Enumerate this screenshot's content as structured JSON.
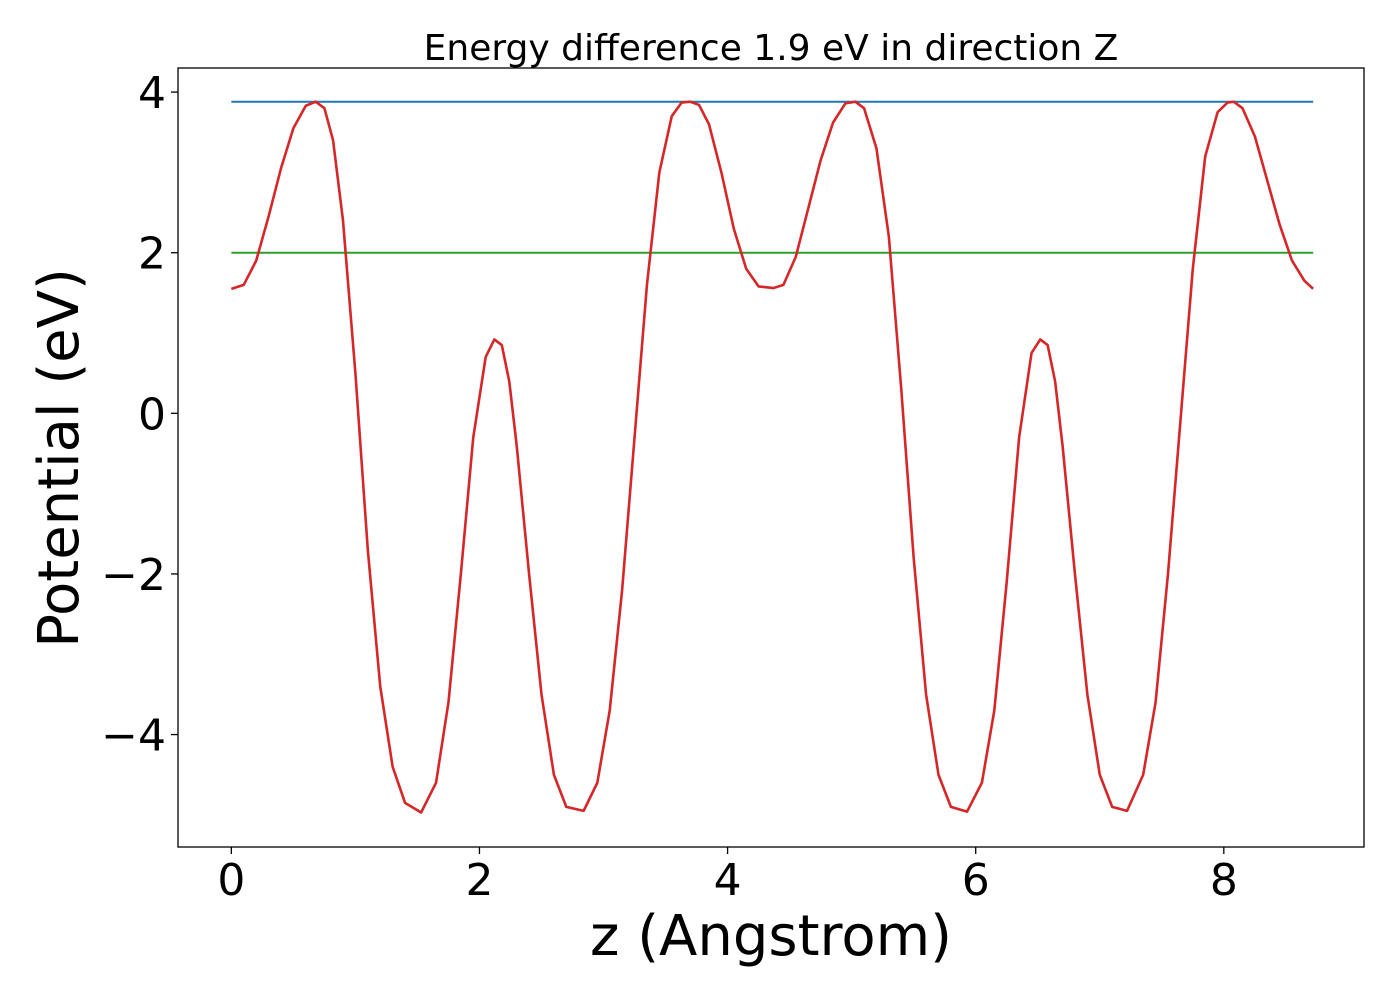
{
  "chart_data": {
    "type": "line",
    "title": "Energy difference 1.9 eV in direction Z",
    "xlabel": "z (Angstrom)",
    "ylabel": "Potential (eV)",
    "xlim": [
      -0.43,
      9.13
    ],
    "ylim": [
      -5.4,
      4.3
    ],
    "xticks": [
      {
        "value": 0,
        "label": "0"
      },
      {
        "value": 2,
        "label": "2"
      },
      {
        "value": 4,
        "label": "4"
      },
      {
        "value": 6,
        "label": "6"
      },
      {
        "value": 8,
        "label": "8"
      }
    ],
    "yticks": [
      {
        "value": -4,
        "label": "−4"
      },
      {
        "value": -2,
        "label": "−2"
      },
      {
        "value": 0,
        "label": "0"
      },
      {
        "value": 2,
        "label": "2"
      },
      {
        "value": 4,
        "label": "4"
      }
    ],
    "grid": false,
    "series": [
      {
        "color": "#1f77b4",
        "x": [
          0,
          8.72
        ],
        "y": [
          3.88,
          3.88
        ]
      },
      {
        "color": "#2ca02c",
        "x": [
          0,
          8.72
        ],
        "y": [
          2.0,
          2.0
        ]
      },
      {
        "color": "#d62728",
        "x": [
          0,
          0.1,
          0.2,
          0.3,
          0.4,
          0.5,
          0.6,
          0.68,
          0.75,
          0.82,
          0.9,
          1.0,
          1.1,
          1.2,
          1.3,
          1.4,
          1.53,
          1.65,
          1.75,
          1.85,
          1.95,
          2.05,
          2.12,
          2.18,
          2.24,
          2.3,
          2.4,
          2.5,
          2.6,
          2.7,
          2.84,
          2.95,
          3.05,
          3.15,
          3.25,
          3.35,
          3.45,
          3.55,
          3.63,
          3.7,
          3.77,
          3.85,
          3.95,
          4.05,
          4.15,
          4.25,
          4.37,
          4.45,
          4.55,
          4.65,
          4.75,
          4.85,
          4.95,
          5.03,
          5.1,
          5.2,
          5.3,
          5.4,
          5.5,
          5.6,
          5.7,
          5.8,
          5.93,
          6.05,
          6.15,
          6.25,
          6.35,
          6.45,
          6.52,
          6.58,
          6.64,
          6.7,
          6.8,
          6.9,
          7.0,
          7.1,
          7.22,
          7.35,
          7.45,
          7.55,
          7.65,
          7.75,
          7.85,
          7.95,
          8.03,
          8.08,
          8.15,
          8.25,
          8.35,
          8.45,
          8.55,
          8.65,
          8.72
        ],
        "y": [
          1.55,
          1.6,
          1.9,
          2.45,
          3.05,
          3.55,
          3.83,
          3.88,
          3.8,
          3.4,
          2.4,
          0.5,
          -1.7,
          -3.4,
          -4.4,
          -4.85,
          -4.97,
          -4.6,
          -3.6,
          -2.0,
          -0.3,
          0.7,
          0.92,
          0.85,
          0.4,
          -0.4,
          -2.0,
          -3.5,
          -4.5,
          -4.9,
          -4.95,
          -4.6,
          -3.7,
          -2.2,
          -0.3,
          1.6,
          3.0,
          3.7,
          3.87,
          3.88,
          3.84,
          3.6,
          3.0,
          2.3,
          1.8,
          1.58,
          1.56,
          1.6,
          1.95,
          2.55,
          3.15,
          3.62,
          3.86,
          3.88,
          3.8,
          3.3,
          2.2,
          0.3,
          -1.8,
          -3.5,
          -4.5,
          -4.9,
          -4.96,
          -4.6,
          -3.7,
          -2.1,
          -0.3,
          0.75,
          0.92,
          0.85,
          0.4,
          -0.4,
          -2.0,
          -3.5,
          -4.5,
          -4.9,
          -4.95,
          -4.5,
          -3.6,
          -2.0,
          -0.1,
          1.8,
          3.2,
          3.75,
          3.87,
          3.88,
          3.8,
          3.45,
          2.9,
          2.35,
          1.9,
          1.65,
          1.55
        ]
      }
    ]
  }
}
